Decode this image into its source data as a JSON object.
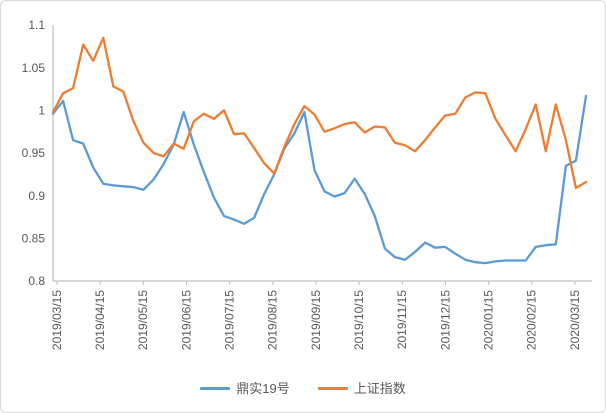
{
  "frame": {
    "background": "#FFFFFF",
    "border_color": "#D9D9D9"
  },
  "axis": {
    "text_color": "#595959",
    "line_color": "#BFBFBF"
  },
  "legend": {
    "position": "bottom-center",
    "items": [
      {
        "label": "鼎实19号",
        "color": "#5B9BD5"
      },
      {
        "label": "上证指数",
        "color": "#ED7D31"
      }
    ]
  },
  "chart_data": {
    "type": "line",
    "title": "",
    "xlabel": "",
    "ylabel": "",
    "grid": false,
    "legend_position": "bottom",
    "ylim": [
      0.8,
      1.1
    ],
    "y_tick_step": 0.05,
    "y_tick_labels": [
      "0.8",
      "0.85",
      "0.9",
      "0.95",
      "1",
      "1.05",
      "1.1"
    ],
    "x_tick_labels": [
      "2019/03/15",
      "2019/04/15",
      "2019/05/15",
      "2019/06/15",
      "2019/07/15",
      "2019/08/15",
      "2019/09/15",
      "2019/10/15",
      "2019/11/15",
      "2019/12/15",
      "2020/01/15",
      "2020/02/15",
      "2020/03/15"
    ],
    "x_label_rotation_deg": -90,
    "x_sampling": "weekly, 54 points from 2019/03/15 to 2020/03/20",
    "series": [
      {
        "name": "鼎实19号",
        "color": "#5B9BD5",
        "values": [
          0.996,
          1.011,
          0.965,
          0.961,
          0.933,
          0.914,
          0.912,
          0.911,
          0.91,
          0.907,
          0.919,
          0.937,
          0.96,
          0.998,
          0.96,
          0.928,
          0.898,
          0.876,
          0.872,
          0.867,
          0.874,
          0.902,
          0.925,
          0.955,
          0.973,
          0.998,
          0.93,
          0.905,
          0.899,
          0.903,
          0.92,
          0.902,
          0.876,
          0.838,
          0.828,
          0.825,
          0.834,
          0.845,
          0.839,
          0.84,
          0.832,
          0.825,
          0.822,
          0.821,
          0.823,
          0.824,
          0.824,
          0.824,
          0.84,
          0.842,
          0.843,
          0.935,
          0.941,
          1.017
        ]
      },
      {
        "name": "上证指数",
        "color": "#ED7D31",
        "values": [
          0.998,
          1.02,
          1.026,
          1.077,
          1.058,
          1.085,
          1.028,
          1.022,
          0.987,
          0.962,
          0.95,
          0.946,
          0.961,
          0.955,
          0.987,
          0.996,
          0.99,
          1.0,
          0.972,
          0.973,
          0.956,
          0.938,
          0.926,
          0.957,
          0.984,
          1.005,
          0.995,
          0.975,
          0.979,
          0.984,
          0.986,
          0.974,
          0.981,
          0.98,
          0.962,
          0.959,
          0.952,
          0.965,
          0.98,
          0.994,
          0.996,
          1.015,
          1.021,
          1.02,
          0.99,
          0.971,
          0.952,
          0.978,
          1.007,
          0.952,
          1.007,
          0.965,
          0.909,
          0.916
        ]
      }
    ]
  }
}
